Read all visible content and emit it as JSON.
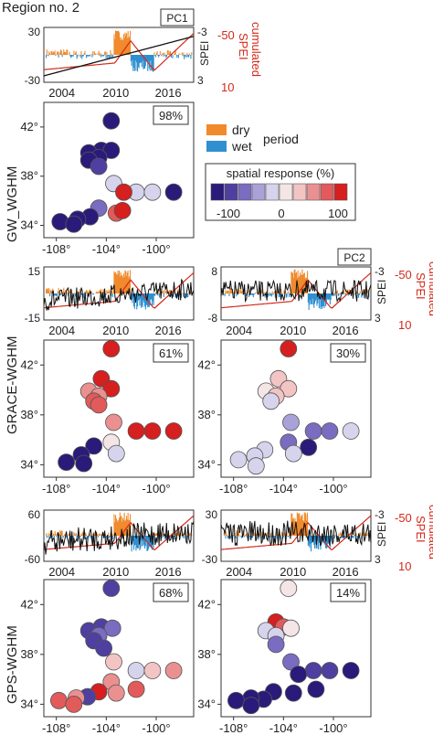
{
  "region_title": "Region no. 2",
  "lat_ticks": [
    "34°",
    "38°",
    "42°"
  ],
  "lon_ticks": [
    "-108°",
    "-104°",
    "-100°"
  ],
  "year_ticks": [
    "2004",
    "2010",
    "2016"
  ],
  "spei_label": "SPEI",
  "cum_spei_label": "cumulated SPEI",
  "cum_spei_line1": "cumulated",
  "cum_spei_line2": "SPEI",
  "legend": {
    "dry": "dry",
    "wet": "wet",
    "period": "period",
    "scale_title": "spatial response (%)",
    "scale_ticks": [
      "-100",
      "0",
      "100"
    ],
    "dry_color": "#f08a2c",
    "wet_color": "#2f8fd0",
    "scale_colors": [
      "#2a1a7a",
      "#4e3fa0",
      "#7a6cc0",
      "#a9a2d8",
      "#d6d3ec",
      "#f4e6e6",
      "#f3c4c4",
      "#ea9090",
      "#e25a5a",
      "#d61f1f"
    ]
  },
  "colors": {
    "pc_line": "#111111",
    "cum_line": "#d42a1a",
    "red_text": "#d42a1a"
  },
  "rows": [
    {
      "name": "GW_WGHM",
      "columns": [
        {
          "pc": "PC1",
          "pct": "98%",
          "ts_ticks_left": [
            "30",
            "-30"
          ],
          "ts_ticks_right": [
            "-3",
            "3"
          ],
          "cum_ticks": [
            "-50",
            "10"
          ],
          "points": [
            [
              -103.6,
              42.5,
              -95
            ],
            [
              -104.4,
              40.1,
              -85
            ],
            [
              -103.6,
              40.1,
              -85
            ],
            [
              -105.4,
              39.9,
              -90
            ],
            [
              -104.6,
              39.5,
              -90
            ],
            [
              -105.4,
              39.3,
              -85
            ],
            [
              -104.6,
              38.8,
              -80
            ],
            [
              -103.4,
              37.4,
              -15
            ],
            [
              -101.6,
              36.7,
              -15
            ],
            [
              -102.6,
              36.7,
              80
            ],
            [
              -100.3,
              36.7,
              -10
            ],
            [
              -98.6,
              36.7,
              -100
            ],
            [
              -103.2,
              35.0,
              75
            ],
            [
              -102.7,
              35.2,
              80
            ],
            [
              -104.6,
              35.4,
              -60
            ],
            [
              -105.3,
              34.7,
              -95
            ],
            [
              -106.3,
              34.5,
              -95
            ],
            [
              -107.7,
              34.3,
              -100
            ],
            [
              -106.6,
              34.1,
              -100
            ]
          ]
        }
      ]
    },
    {
      "name": "GRACE-WGHM",
      "columns": [
        {
          "pc": "",
          "pct": "61%",
          "ts_ticks_left": [
            "15",
            "-15"
          ],
          "ts_ticks_right": [],
          "cum_ticks": [],
          "points": [
            [
              -103.6,
              43.3,
              95
            ],
            [
              -104.4,
              40.9,
              80
            ],
            [
              -103.6,
              40.1,
              85
            ],
            [
              -105.4,
              39.9,
              40
            ],
            [
              -104.6,
              39.5,
              50
            ],
            [
              -105.0,
              39.1,
              60
            ],
            [
              -104.6,
              38.8,
              65
            ],
            [
              -103.4,
              37.4,
              55
            ],
            [
              -101.6,
              36.7,
              85
            ],
            [
              -100.3,
              36.7,
              90
            ],
            [
              -98.6,
              36.7,
              95
            ],
            [
              -103.6,
              35.8,
              10
            ],
            [
              -103.2,
              34.9,
              -10
            ],
            [
              -105.0,
              35.5,
              -90
            ],
            [
              -106.0,
              34.8,
              -95
            ],
            [
              -107.2,
              34.2,
              -95
            ],
            [
              -105.8,
              34.1,
              -100
            ]
          ]
        },
        {
          "pc": "PC2",
          "pct": "30%",
          "ts_ticks_left": [
            "8",
            "-8"
          ],
          "ts_ticks_right": [
            "-3",
            "3"
          ],
          "cum_ticks": [
            "-50",
            "10"
          ],
          "points": [
            [
              -103.6,
              43.3,
              85
            ],
            [
              -104.4,
              40.9,
              25
            ],
            [
              -103.6,
              40.1,
              30
            ],
            [
              -105.4,
              39.9,
              15
            ],
            [
              -104.6,
              39.5,
              20
            ],
            [
              -105.0,
              39.1,
              -10
            ],
            [
              -103.4,
              37.4,
              -40
            ],
            [
              -101.6,
              36.7,
              -45
            ],
            [
              -100.3,
              36.7,
              -50
            ],
            [
              -98.6,
              36.7,
              -5
            ],
            [
              -103.6,
              35.8,
              -60
            ],
            [
              -102.0,
              35.4,
              -90
            ],
            [
              -103.2,
              34.9,
              -5
            ],
            [
              -105.5,
              35.2,
              -5
            ],
            [
              -106.3,
              34.7,
              -5
            ],
            [
              -107.6,
              34.4,
              -10
            ],
            [
              -106.2,
              33.9,
              -5
            ]
          ]
        }
      ]
    },
    {
      "name": "GPS-WGHM",
      "columns": [
        {
          "pc": "",
          "pct": "68%",
          "ts_ticks_left": [
            "60",
            "-60"
          ],
          "ts_ticks_right": [],
          "cum_ticks": [],
          "points": [
            [
              -103.6,
              43.3,
              -80
            ],
            [
              -104.4,
              40.2,
              -65
            ],
            [
              -103.5,
              40.1,
              -60
            ],
            [
              -105.4,
              39.9,
              -70
            ],
            [
              -104.6,
              39.5,
              -60
            ],
            [
              -105.0,
              39.1,
              -70
            ],
            [
              -104.2,
              38.5,
              -75
            ],
            [
              -103.4,
              37.4,
              20
            ],
            [
              -101.6,
              36.7,
              -5
            ],
            [
              -100.3,
              36.7,
              30
            ],
            [
              -98.6,
              36.7,
              40
            ],
            [
              -103.6,
              35.8,
              55
            ],
            [
              -101.6,
              35.2,
              70
            ],
            [
              -103.2,
              34.9,
              50
            ],
            [
              -104.6,
              35.0,
              95
            ],
            [
              -105.5,
              34.6,
              -70
            ],
            [
              -106.4,
              34.5,
              50
            ],
            [
              -107.8,
              34.3,
              60
            ],
            [
              -106.6,
              34.0,
              60
            ]
          ]
        },
        {
          "pc": "",
          "pct": "14%",
          "ts_ticks_left": [
            "30",
            "-30"
          ],
          "ts_ticks_right": [
            "-3",
            "3"
          ],
          "cum_ticks": [
            "-50",
            "10"
          ],
          "points": [
            [
              -103.6,
              43.3,
              15
            ],
            [
              -104.6,
              40.6,
              85
            ],
            [
              -104.0,
              40.2,
              70
            ],
            [
              -103.4,
              40.1,
              5
            ],
            [
              -105.4,
              39.9,
              -5
            ],
            [
              -104.6,
              39.5,
              -5
            ],
            [
              -104.6,
              38.8,
              -50
            ],
            [
              -103.4,
              37.4,
              -55
            ],
            [
              -101.6,
              36.7,
              -75
            ],
            [
              -100.3,
              36.7,
              -80
            ],
            [
              -98.6,
              36.7,
              -85
            ],
            [
              -102.8,
              36.4,
              -90
            ],
            [
              -101.4,
              35.2,
              -95
            ],
            [
              -103.2,
              34.9,
              -95
            ],
            [
              -104.8,
              35.0,
              -95
            ],
            [
              -105.6,
              34.4,
              -95
            ],
            [
              -106.6,
              34.5,
              -95
            ],
            [
              -107.8,
              34.3,
              -100
            ],
            [
              -106.6,
              33.9,
              -95
            ]
          ]
        }
      ]
    }
  ],
  "chart_data": {
    "type": "scatter",
    "description_note": "",
    "x_axis_ticks": [
      "-108°",
      "-104°",
      "-100°"
    ],
    "y_axis_ticks": [
      "34°",
      "38°",
      "42°"
    ],
    "xlim": [
      -109,
      -97
    ],
    "ylim": [
      33,
      44
    ],
    "color_scale": {
      "ticks": [
        -100,
        0,
        100
      ],
      "title": "spatial response (%)"
    },
    "time_axis_ticks": [
      "2004",
      "2010",
      "2016"
    ],
    "panels": [
      {
        "row": "GW_WGHM",
        "pc": "PC1",
        "explained": "98%",
        "ts_ylim": [
          -30,
          30
        ]
      },
      {
        "row": "GRACE-WGHM",
        "pc": "PC1",
        "explained": "61%",
        "ts_ylim": [
          -15,
          15
        ]
      },
      {
        "row": "GRACE-WGHM",
        "pc": "PC2",
        "explained": "30%",
        "ts_ylim": [
          -8,
          8
        ]
      },
      {
        "row": "GPS-WGHM",
        "pc": "PC1",
        "explained": "68%",
        "ts_ylim": [
          -60,
          60
        ]
      },
      {
        "row": "GPS-WGHM",
        "pc": "PC2",
        "explained": "14%",
        "ts_ylim": [
          -30,
          30
        ]
      }
    ]
  }
}
